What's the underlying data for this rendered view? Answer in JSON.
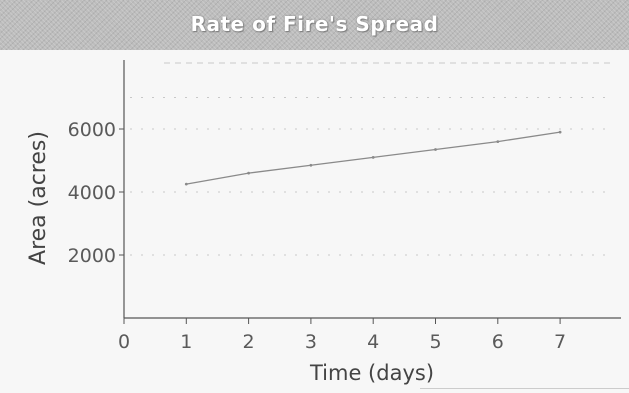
{
  "chart_data": {
    "type": "line",
    "title": "Rate of Fire's Spread",
    "xlabel": "Time (days)",
    "ylabel": "Area (acres)",
    "x_ticks": [
      0,
      1,
      2,
      3,
      4,
      5,
      6,
      7
    ],
    "y_ticks": [
      2000,
      4000,
      6000
    ],
    "xlim": [
      0,
      7.9
    ],
    "ylim": [
      0,
      7500
    ],
    "grid": true,
    "series": [
      {
        "x": [
          1,
          2,
          3,
          4,
          5,
          6,
          7
        ],
        "values": [
          4250,
          4600,
          4850,
          5100,
          5350,
          5600,
          5900
        ]
      }
    ],
    "colors": {
      "line": "#8a8a8a",
      "axis": "#555555",
      "grid": "#c8c8c8"
    }
  }
}
